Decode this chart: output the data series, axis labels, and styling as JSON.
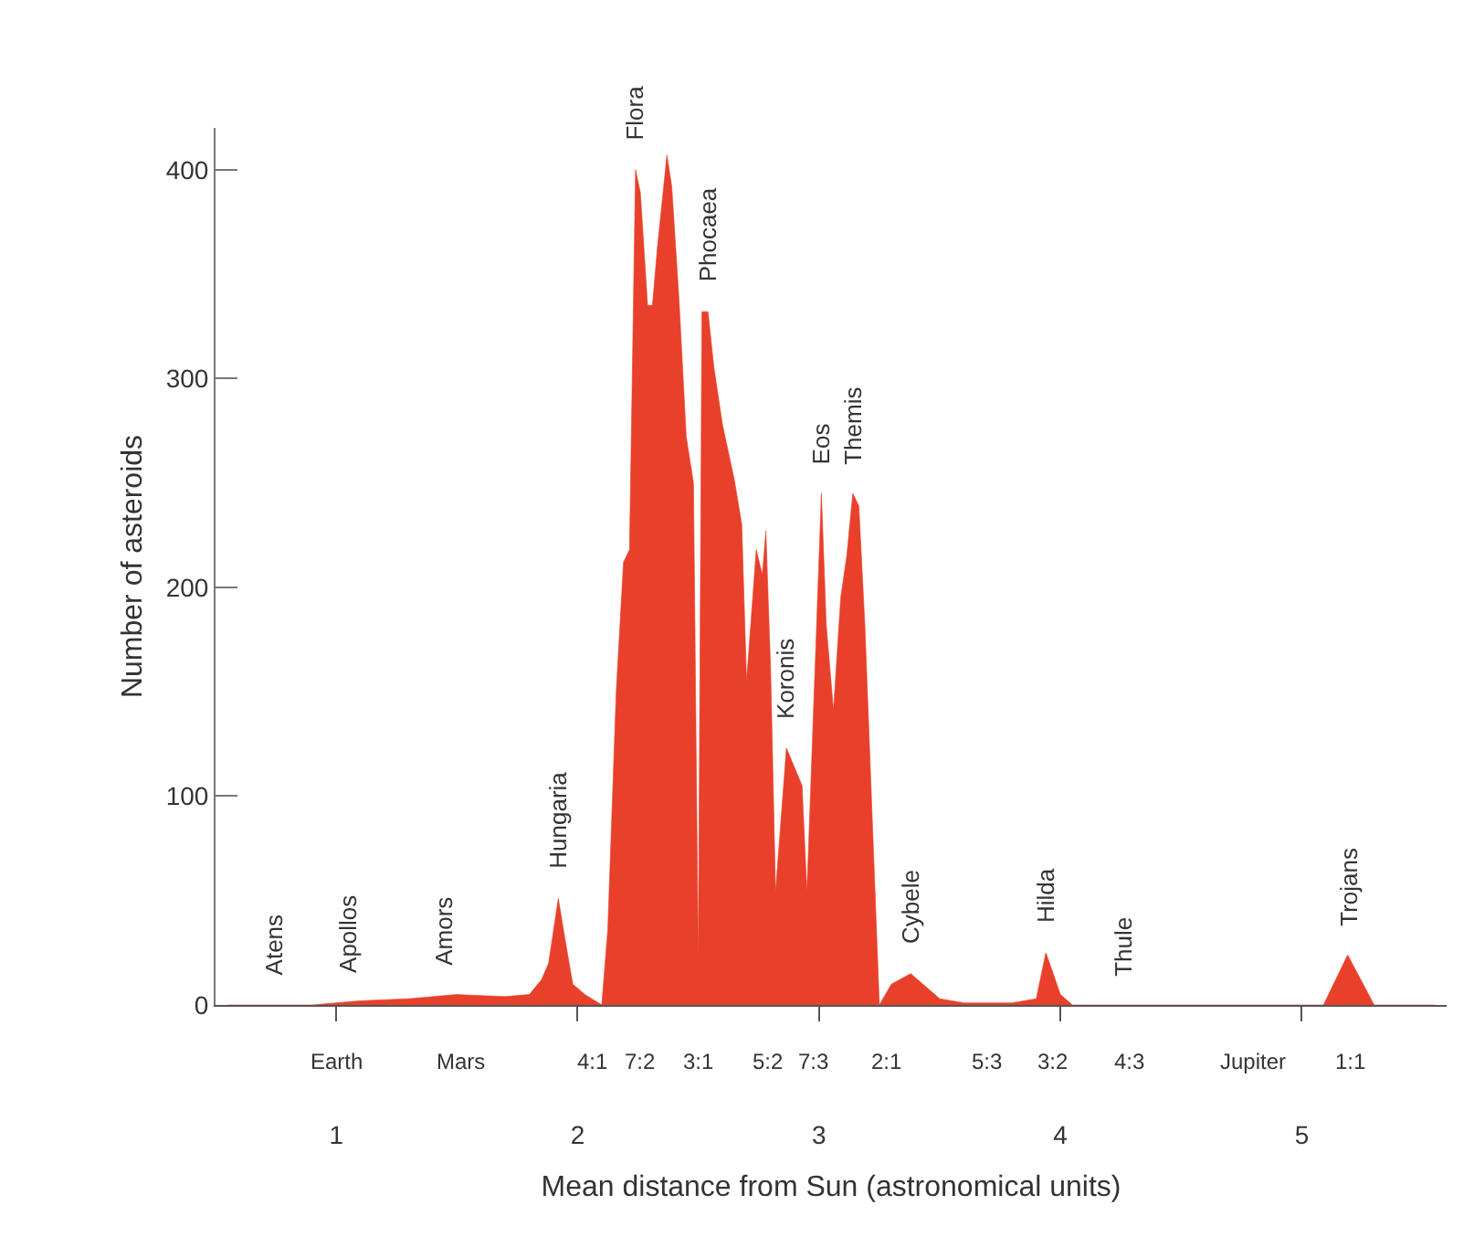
{
  "chart_data": {
    "type": "area",
    "xlabel": "Mean distance from Sun (astronomical units)",
    "ylabel": "Number of asteroids",
    "x": [
      0.55,
      0.9,
      1.1,
      1.3,
      1.5,
      1.7,
      1.8,
      1.85,
      1.88,
      1.92,
      1.95,
      1.98,
      2.03,
      2.1,
      2.125,
      2.16,
      2.19,
      2.215,
      2.24,
      2.26,
      2.29,
      2.31,
      2.33,
      2.37,
      2.39,
      2.42,
      2.45,
      2.48,
      2.5,
      2.515,
      2.54,
      2.565,
      2.6,
      2.65,
      2.68,
      2.7,
      2.74,
      2.765,
      2.78,
      2.8,
      2.82,
      2.865,
      2.93,
      2.95,
      3.01,
      3.03,
      3.06,
      3.09,
      3.115,
      3.14,
      3.165,
      3.19,
      3.25,
      3.3,
      3.38,
      3.45,
      3.5,
      3.6,
      3.8,
      3.9,
      3.94,
      4.0,
      4.05,
      5.09,
      5.19,
      5.3,
      5.55
    ],
    "series": [
      {
        "color": "#e8402a",
        "values": [
          0,
          0,
          2,
          3,
          5,
          4,
          5,
          12,
          20,
          51,
          30,
          10,
          5,
          0,
          36,
          150,
          212,
          218,
          400,
          389,
          335,
          335,
          362,
          407,
          392,
          338,
          272,
          250,
          20,
          332,
          332,
          305,
          278,
          251,
          230,
          155,
          218,
          206,
          227,
          159,
          54,
          123,
          105,
          54,
          245,
          182,
          141,
          195,
          215,
          245,
          239,
          182,
          0,
          10,
          15,
          8,
          3,
          1,
          1,
          3,
          25,
          5,
          0,
          0,
          24,
          0,
          0
        ]
      }
    ],
    "xlim": [
      0.5,
      5.6
    ],
    "ylim": [
      0,
      420
    ],
    "xticks": [
      1,
      2,
      3,
      4,
      5
    ],
    "yticks": [
      0,
      100,
      200,
      300,
      400
    ],
    "annotations": [
      {
        "text": "Atens",
        "x": 0.74,
        "y": 0
      },
      {
        "text": "Apollos",
        "x": 1.05,
        "y": 1.5
      },
      {
        "text": "Amors",
        "x": 1.45,
        "y": 4.5
      },
      {
        "text": "Hungaria",
        "x": 1.92,
        "y": 51
      },
      {
        "text": "Flora",
        "x": 2.24,
        "y": 400
      },
      {
        "text": "Phocaea",
        "x": 2.54,
        "y": 332
      },
      {
        "text": "Koronis",
        "x": 2.865,
        "y": 123
      },
      {
        "text": "Eos",
        "x": 3.01,
        "y": 245
      },
      {
        "text": "Themis",
        "x": 3.14,
        "y": 245
      },
      {
        "text": "Cybele",
        "x": 3.38,
        "y": 15
      },
      {
        "text": "Hilda",
        "x": 3.94,
        "y": 25
      },
      {
        "text": "Thule",
        "x": 4.26,
        "y": 0
      },
      {
        "text": "Trojans",
        "x": 5.19,
        "y": 24
      },
      {
        "text": "Earth",
        "x": 1.0,
        "y": 0
      },
      {
        "text": "Mars",
        "x": 1.52,
        "y": 0
      },
      {
        "text": "Jupiter",
        "x": 4.8,
        "y": 0
      },
      {
        "text": "4:1",
        "x": 2.06,
        "y": 0
      },
      {
        "text": "7:2",
        "x": 2.26,
        "y": 0
      },
      {
        "text": "3:1",
        "x": 2.5,
        "y": 0
      },
      {
        "text": "5:2",
        "x": 2.82,
        "y": 0
      },
      {
        "text": "7:3",
        "x": 2.95,
        "y": 0
      },
      {
        "text": "2:1",
        "x": 3.28,
        "y": 0
      },
      {
        "text": "5:3",
        "x": 3.7,
        "y": 0
      },
      {
        "text": "3:2",
        "x": 3.97,
        "y": 0
      },
      {
        "text": "4:3",
        "x": 4.29,
        "y": 0
      },
      {
        "text": "1:1",
        "x": 5.2,
        "y": 0
      }
    ]
  }
}
